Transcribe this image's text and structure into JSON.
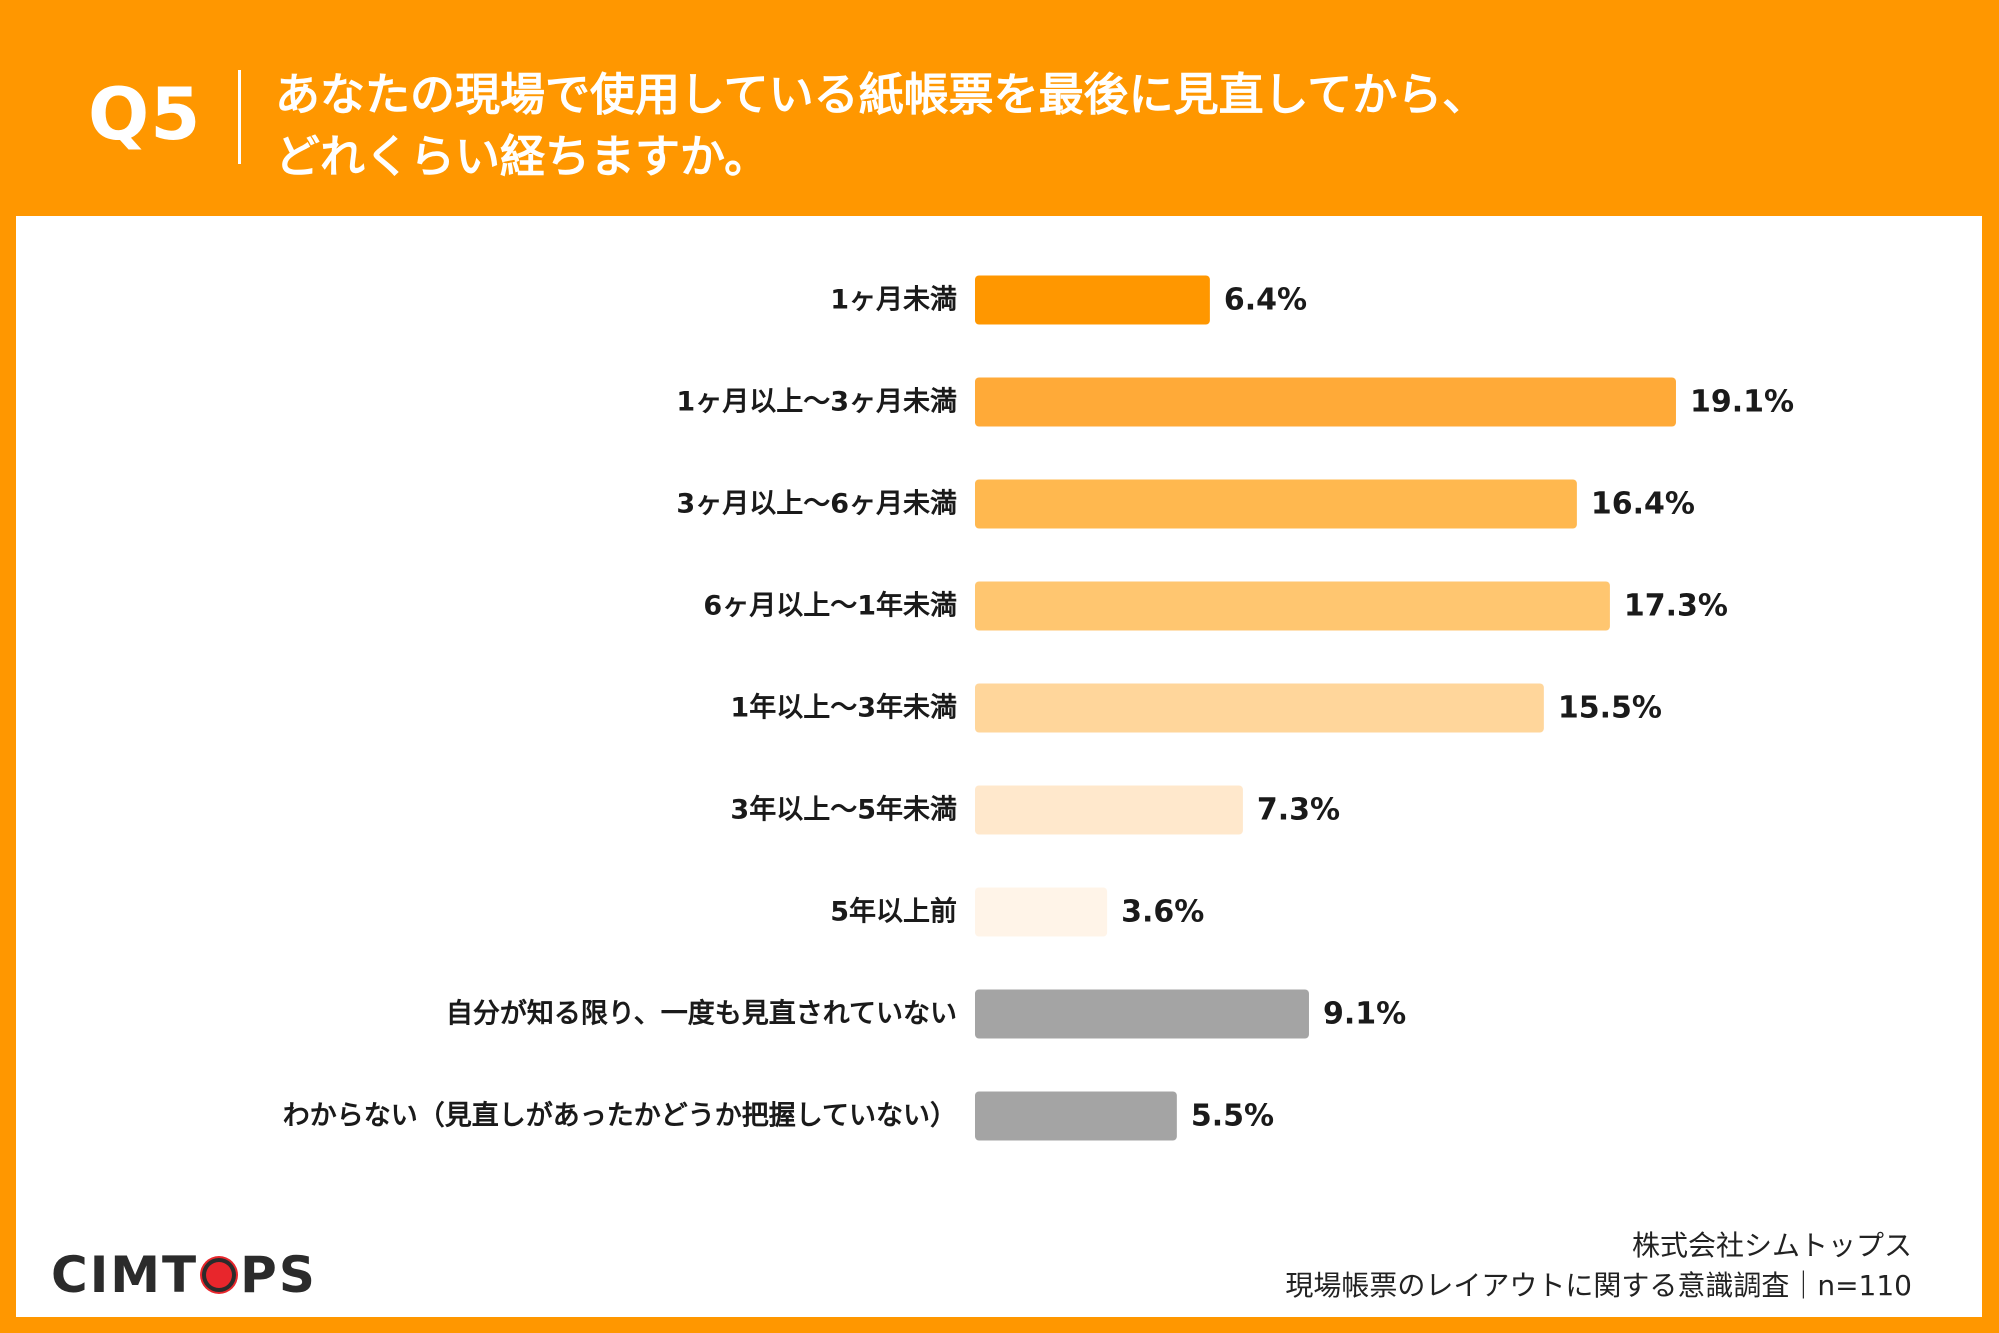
{
  "header": {
    "question_number": "Q5",
    "question_line1": "あなたの現場で使用している紙帳票を最後に見直してから、",
    "question_line2": "どれくらい経ちますか。"
  },
  "footer": {
    "logo_text_left": "CIMT",
    "logo_text_right": "PS",
    "company": "株式会社シムトップス",
    "survey": "現場帳票のレイアウトに関する意識調査｜n=110"
  },
  "colors": {
    "background": "#ff9700",
    "gray_bar": "#a4a4a4"
  },
  "chart_data": {
    "type": "bar",
    "orientation": "horizontal",
    "title": "",
    "xlabel": "",
    "ylabel": "",
    "xlim": [
      0,
      20
    ],
    "grid": false,
    "legend": "none",
    "unit": "%",
    "categories": [
      "1ヶ月未満",
      "1ヶ月以上～3ヶ月未満",
      "3ヶ月以上～6ヶ月未満",
      "6ヶ月以上～1年未満",
      "1年以上～3年未満",
      "3年以上～5年未満",
      "5年以上前",
      "自分が知る限り、一度も見直されていない",
      "わからない（見直しがあったかどうか把握していない）"
    ],
    "values": [
      6.4,
      19.1,
      16.4,
      17.3,
      15.5,
      7.3,
      3.6,
      9.1,
      5.5
    ],
    "value_labels": [
      "6.4%",
      "19.1%",
      "16.4%",
      "17.3%",
      "15.5%",
      "7.3%",
      "3.6%",
      "9.1%",
      "5.5%"
    ],
    "bar_colors": [
      "#ff9700",
      "#ffaa38",
      "#ffb84f",
      "#ffc670",
      "#ffd69b",
      "#ffe8cc",
      "#fff4e8",
      "#a4a4a4",
      "#a4a4a4"
    ]
  }
}
